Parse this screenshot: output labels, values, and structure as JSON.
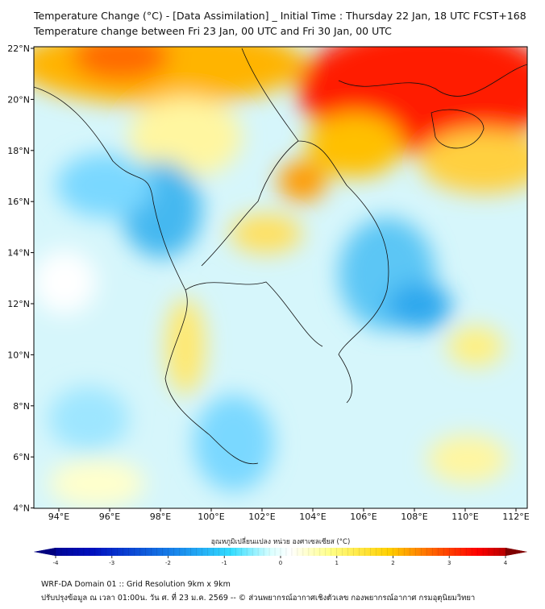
{
  "title": {
    "line1": "Temperature Change (°C) - [Data Assimilation] _ Initial Time : Thursday 22 Jan, 18 UTC FCST+168",
    "line2": "Temperature change between Fri 23 Jan, 00 UTC and Fri 30 Jan, 00 UTC"
  },
  "map": {
    "lat_labels": [
      "22°N",
      "20°N",
      "18°N",
      "16°N",
      "14°N",
      "12°N",
      "10°N",
      "8°N",
      "6°N",
      "4°N"
    ],
    "lon_labels": [
      "94°E",
      "96°E",
      "98°E",
      "100°E",
      "102°E",
      "104°E",
      "106°E",
      "108°E",
      "110°E",
      "112°E"
    ],
    "lat_range": [
      4,
      22
    ],
    "lon_range": [
      93,
      112.5
    ]
  },
  "colorbar": {
    "label": "อุณหภูมิเปลี่ยนแปลง หน่วย องศาเซลเซียส (°C)",
    "ticks": [
      "-4",
      "-3",
      "-2",
      "-1",
      "0",
      "1",
      "2",
      "3",
      "4"
    ],
    "range": [
      -4,
      4
    ],
    "colors": [
      "#00007f",
      "#0022cc",
      "#1a7fe6",
      "#33ccff",
      "#d9ffff",
      "#ffffff",
      "#ffff99",
      "#ffe000",
      "#ff9900",
      "#ff1a00",
      "#7f0000"
    ]
  },
  "footer": {
    "line1": "WRF-DA Domain 01 :: Grid Resolution 9km x 9km",
    "line2": "ปรับปรุงข้อมูล ณ เวลา 01:00น. วัน ศ. ที่ 23 ม.ค. 2569 -- © ส่วนพยากรณ์อากาศเชิงตัวเลข กองพยากรณ์อากาศ กรมอุตุนิยมวิทยา"
  }
}
